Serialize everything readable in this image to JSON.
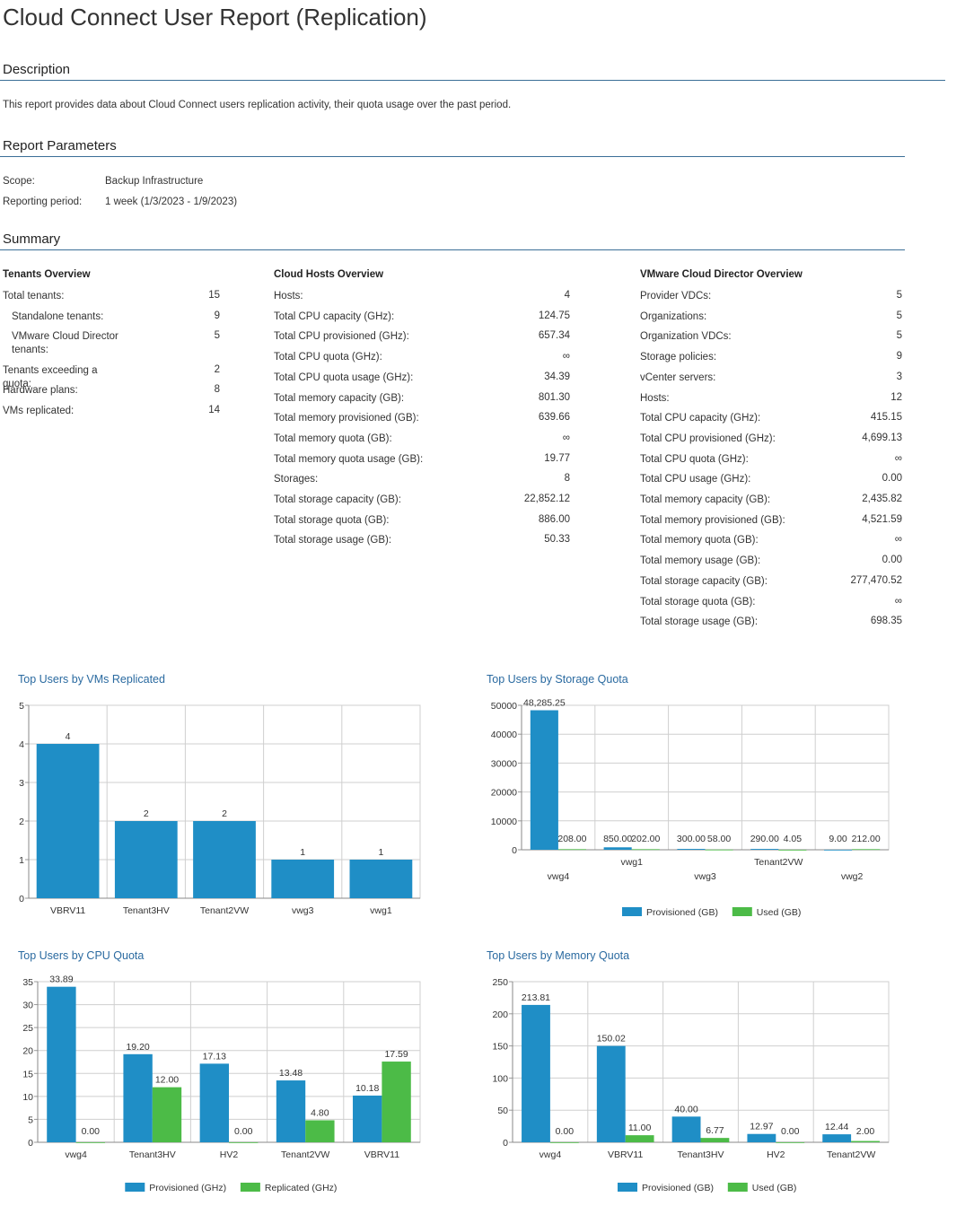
{
  "report": {
    "title": "Cloud Connect User Report (Replication)",
    "description_heading": "Description",
    "description_text": "This report provides data about Cloud Connect users replication activity, their quota usage over the past period.",
    "parameters_heading": "Report Parameters",
    "parameters": [
      {
        "label": "Scope:",
        "value": "Backup Infrastructure"
      },
      {
        "label": "Reporting period:",
        "value": "1 week (1/3/2023 - 1/9/2023)"
      }
    ],
    "summary_heading": "Summary"
  },
  "tenants_overview": {
    "heading": "Tenants Overview",
    "rows": [
      {
        "label": "Total tenants:",
        "value": "15"
      },
      {
        "label": "Standalone tenants:",
        "value": "9"
      },
      {
        "label": "VMware Cloud Director tenants:",
        "value": "5"
      },
      {
        "label": "Tenants exceeding a quota:",
        "value": "2"
      },
      {
        "label": "Hardware plans:",
        "value": "8"
      },
      {
        "label": "VMs replicated:",
        "value": "14"
      }
    ]
  },
  "cloud_hosts_overview": {
    "heading": "Cloud Hosts Overview",
    "rows": [
      {
        "label": "Hosts:",
        "value": "4"
      },
      {
        "label": "Total CPU capacity (GHz):",
        "value": "124.75"
      },
      {
        "label": "Total CPU provisioned (GHz):",
        "value": "657.34"
      },
      {
        "label": "Total CPU quota (GHz):",
        "value": "∞"
      },
      {
        "label": "Total CPU quota usage (GHz):",
        "value": "34.39"
      },
      {
        "label": "Total memory capacity (GB):",
        "value": "801.30"
      },
      {
        "label": "Total memory provisioned (GB):",
        "value": "639.66"
      },
      {
        "label": "Total memory quota (GB):",
        "value": "∞"
      },
      {
        "label": "Total memory quota usage (GB):",
        "value": "19.77"
      },
      {
        "label": "Storages:",
        "value": "8"
      },
      {
        "label": "Total storage capacity (GB):",
        "value": "22,852.12"
      },
      {
        "label": "Total storage quota (GB):",
        "value": "886.00"
      },
      {
        "label": "Total storage usage (GB):",
        "value": "50.33"
      }
    ]
  },
  "vcd_overview": {
    "heading": "VMware Cloud Director Overview",
    "rows": [
      {
        "label": "Provider VDCs:",
        "value": "5"
      },
      {
        "label": "Organizations:",
        "value": "5"
      },
      {
        "label": "Organization VDCs:",
        "value": "5"
      },
      {
        "label": "Storage policies:",
        "value": "9"
      },
      {
        "label": "vCenter servers:",
        "value": "3"
      },
      {
        "label": "Hosts:",
        "value": "12"
      },
      {
        "label": "Total CPU capacity (GHz):",
        "value": "415.15"
      },
      {
        "label": "Total CPU provisioned (GHz):",
        "value": "4,699.13"
      },
      {
        "label": "Total CPU quota (GHz):",
        "value": "∞"
      },
      {
        "label": "Total CPU usage (GHz):",
        "value": "0.00"
      },
      {
        "label": "Total memory capacity (GB):",
        "value": "2,435.82"
      },
      {
        "label": "Total memory provisioned (GB):",
        "value": "4,521.59"
      },
      {
        "label": "Total memory quota (GB):",
        "value": "∞"
      },
      {
        "label": "Total memory usage (GB):",
        "value": "0.00"
      },
      {
        "label": "Total storage capacity (GB):",
        "value": "277,470.52"
      },
      {
        "label": "Total storage quota (GB):",
        "value": "∞"
      },
      {
        "label": "Total storage usage (GB):",
        "value": "698.35"
      }
    ]
  },
  "colors": {
    "blue": "#1f8ec6",
    "green": "#4cbb47",
    "rule": "#3b6f97",
    "chart_title": "#2a6aa0",
    "grid": "#cfcfcf"
  },
  "chart_data": [
    {
      "id": "vms",
      "type": "bar",
      "title": "Top Users by VMs Replicated",
      "categories": [
        "VBRV11",
        "Tenant3HV",
        "Tenant2VW",
        "vwg3",
        "vwg1"
      ],
      "series": [
        {
          "values": [
            4,
            2,
            2,
            1,
            1
          ],
          "labels": [
            "4",
            "2",
            "2",
            "1",
            "1"
          ]
        }
      ],
      "ylim": [
        0,
        5
      ],
      "yticks": [
        "0",
        "1",
        "2",
        "3",
        "4",
        "5"
      ],
      "grid": true
    },
    {
      "id": "storage",
      "type": "bar",
      "title": "Top Users by Storage Quota",
      "categories": [
        "vwg4",
        "vwg1",
        "vwg3",
        "Tenant2VW",
        "vwg2"
      ],
      "series": [
        {
          "name": "Provisioned (GB)",
          "values": [
            48285.25,
            850,
            300,
            290,
            9
          ],
          "labels": [
            "48,285.25",
            "850.00",
            "300.00",
            "290.00",
            "9.00"
          ]
        },
        {
          "name": "Used (GB)",
          "values": [
            208,
            202,
            58,
            4.05,
            212
          ],
          "labels": [
            "208.00",
            "202.00",
            "58.00",
            "4.05",
            "212.00"
          ]
        }
      ],
      "ylim": [
        0,
        50000
      ],
      "yticks": [
        "0",
        "10000",
        "20000",
        "30000",
        "40000",
        "50000"
      ],
      "legend": "bottom",
      "grid": true
    },
    {
      "id": "cpu",
      "type": "bar",
      "title": "Top Users by CPU Quota",
      "categories": [
        "vwg4",
        "Tenant3HV",
        "HV2",
        "Tenant2VW",
        "VBRV11"
      ],
      "series": [
        {
          "name": "Provisioned (GHz)",
          "values": [
            33.89,
            19.2,
            17.13,
            13.48,
            10.18
          ],
          "labels": [
            "33.89",
            "19.20",
            "17.13",
            "13.48",
            "10.18"
          ]
        },
        {
          "name": "Replicated (GHz)",
          "values": [
            0,
            12,
            0,
            4.8,
            17.59
          ],
          "labels": [
            "0.00",
            "12.00",
            "0.00",
            "4.80",
            "17.59"
          ]
        }
      ],
      "ylim": [
        0,
        35
      ],
      "yticks": [
        "0",
        "5",
        "10",
        "15",
        "20",
        "25",
        "30",
        "35"
      ],
      "legend": "bottom",
      "grid": true
    },
    {
      "id": "memory",
      "type": "bar",
      "title": "Top Users by Memory Quota",
      "categories": [
        "vwg4",
        "VBRV11",
        "Tenant3HV",
        "HV2",
        "Tenant2VW"
      ],
      "series": [
        {
          "name": "Provisioned (GB)",
          "values": [
            213.81,
            150.02,
            40,
            12.97,
            12.44
          ],
          "labels": [
            "213.81",
            "150.02",
            "40.00",
            "12.97",
            "12.44"
          ]
        },
        {
          "name": "Used (GB)",
          "values": [
            0,
            11,
            6.77,
            0,
            2
          ],
          "labels": [
            "0.00",
            "11.00",
            "6.77",
            "0.00",
            "2.00"
          ]
        }
      ],
      "ylim": [
        0,
        250
      ],
      "yticks": [
        "0",
        "50",
        "100",
        "150",
        "200",
        "250"
      ],
      "legend": "bottom",
      "grid": true
    }
  ]
}
